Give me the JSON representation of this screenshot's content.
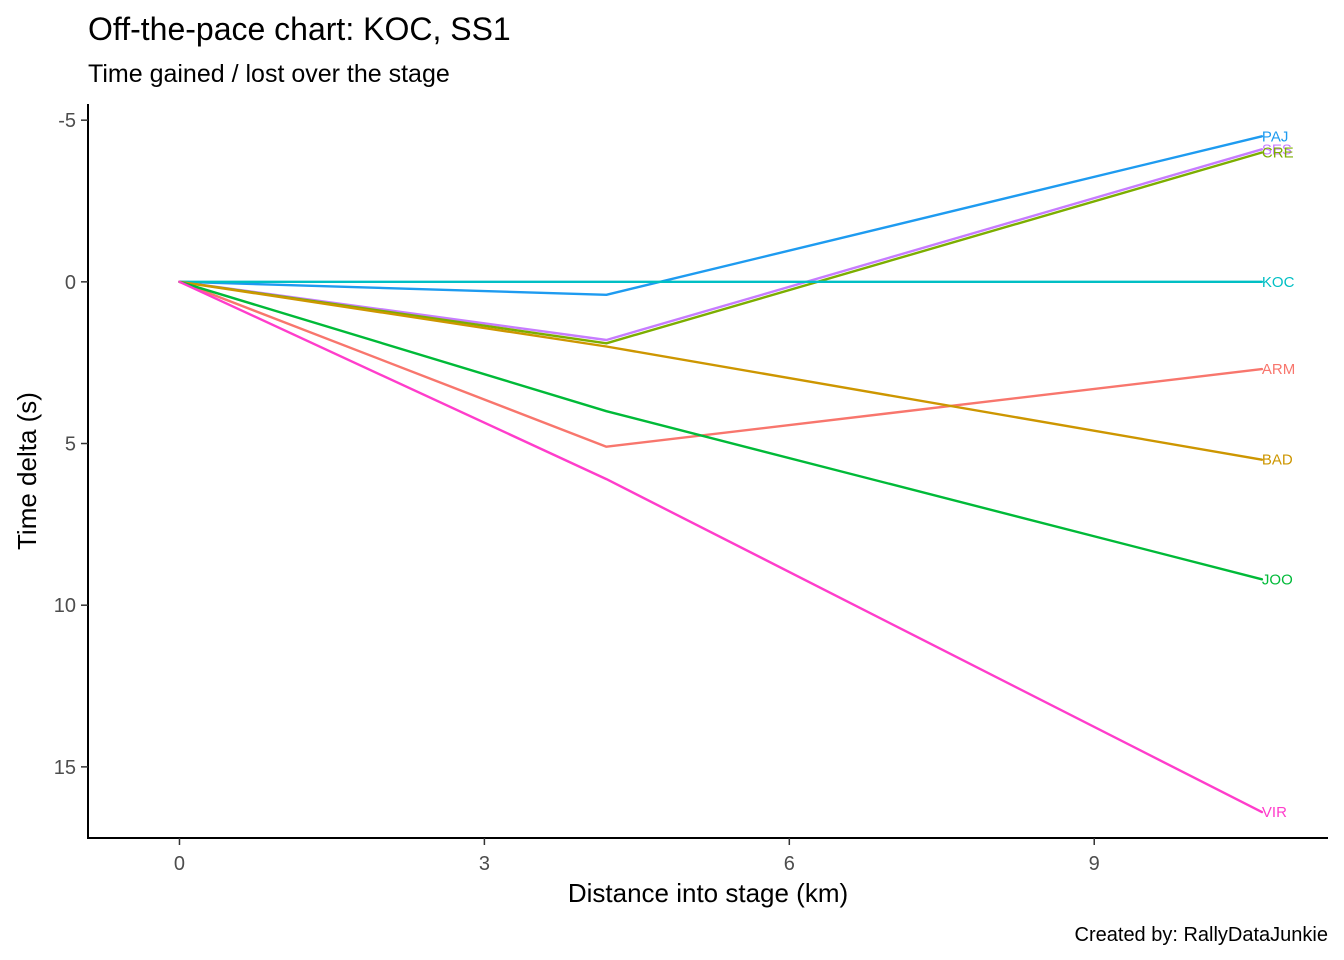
{
  "chart_data": {
    "type": "line",
    "title": "Off-the-pace chart: KOC, SS1",
    "subtitle": "Time gained / lost over the stage",
    "caption": "Created by: RallyDataJunkie",
    "xlabel": "Distance into stage (km)",
    "ylabel": "Time delta (s)",
    "xlim": [
      -0.9,
      11.3
    ],
    "ylim": [
      17.2,
      -5.5
    ],
    "y_reversed": true,
    "xticks": [
      0,
      3,
      6,
      9
    ],
    "xtick_labels": [
      "0",
      "3",
      "6",
      "9"
    ],
    "yticks": [
      -5,
      0,
      5,
      10,
      15
    ],
    "ytick_labels": [
      "-5",
      "0",
      "5",
      "10",
      "15"
    ],
    "grid": false,
    "legend": "none (direct labels at line ends)",
    "series": [
      {
        "name": "PAJ",
        "color": "#1E9BF0",
        "x": [
          0,
          4.2,
          10.65
        ],
        "y": [
          0,
          0.4,
          -4.5
        ]
      },
      {
        "name": "SES",
        "color": "#C77CFF",
        "x": [
          0,
          4.2,
          10.65
        ],
        "y": [
          0,
          1.8,
          -4.1
        ]
      },
      {
        "name": "CRE",
        "color": "#7CAE00",
        "x": [
          0,
          4.2,
          10.65
        ],
        "y": [
          0,
          1.9,
          -4.0
        ]
      },
      {
        "name": "KOC",
        "color": "#00BFC4",
        "x": [
          0,
          4.2,
          10.65
        ],
        "y": [
          0,
          0,
          0
        ]
      },
      {
        "name": "ARM",
        "color": "#F8766D",
        "x": [
          0,
          4.2,
          10.65
        ],
        "y": [
          0,
          5.1,
          2.7
        ]
      },
      {
        "name": "BAD",
        "color": "#CD9600",
        "x": [
          0,
          4.2,
          10.65
        ],
        "y": [
          0,
          2.0,
          5.5
        ]
      },
      {
        "name": "JOO",
        "color": "#00BA38",
        "x": [
          0,
          4.2,
          10.65
        ],
        "y": [
          0,
          4.0,
          9.2
        ]
      },
      {
        "name": "VIR",
        "color": "#FF3DCB",
        "x": [
          0,
          4.2,
          10.65
        ],
        "y": [
          0,
          6.1,
          16.4
        ]
      }
    ]
  }
}
